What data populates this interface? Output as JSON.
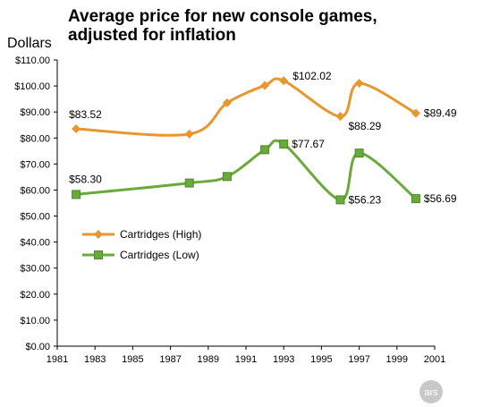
{
  "chart_data": {
    "type": "line",
    "title_line1": "Average price for new console games,",
    "title_line2": "adjusted for inflation",
    "ylabel": "Dollars",
    "xlabel": "",
    "xlim": [
      1981,
      2001
    ],
    "ylim": [
      0,
      110
    ],
    "x_ticks": [
      "1981",
      "1983",
      "1985",
      "1987",
      "1989",
      "1991",
      "1993",
      "1995",
      "1997",
      "1999",
      "2001"
    ],
    "y_ticks": [
      "$0.00",
      "$10.00",
      "$20.00",
      "$30.00",
      "$40.00",
      "$50.00",
      "$60.00",
      "$70.00",
      "$80.00",
      "$90.00",
      "$100.00",
      "$110.00"
    ],
    "grid": false,
    "legend_position": "left-middle",
    "series": [
      {
        "name": "Cartridges (High)",
        "color": "#E8962E",
        "marker": "diamond",
        "x": [
          1982,
          1988,
          1990,
          1992,
          1993,
          1996,
          1997,
          2000
        ],
        "y": [
          83.52,
          81.5,
          93.5,
          100.2,
          102.02,
          88.29,
          101.0,
          89.49
        ]
      },
      {
        "name": "Cartridges (Low)",
        "color": "#6AAA3A",
        "marker": "square",
        "x": [
          1982,
          1988,
          1990,
          1992,
          1993,
          1996,
          1997,
          2000
        ],
        "y": [
          58.3,
          62.7,
          65.2,
          75.5,
          77.67,
          56.23,
          74.2,
          56.69
        ]
      }
    ],
    "data_labels": [
      {
        "series": 0,
        "point": 0,
        "text": "$83.52"
      },
      {
        "series": 0,
        "point": 4,
        "text": "$102.02"
      },
      {
        "series": 0,
        "point": 5,
        "text": "$88.29"
      },
      {
        "series": 0,
        "point": 7,
        "text": "$89.49"
      },
      {
        "series": 1,
        "point": 0,
        "text": "$58.30"
      },
      {
        "series": 1,
        "point": 4,
        "text": "$77.67"
      },
      {
        "series": 1,
        "point": 5,
        "text": "$56.23"
      },
      {
        "series": 1,
        "point": 7,
        "text": "$56.69"
      }
    ]
  },
  "watermark": "ars"
}
